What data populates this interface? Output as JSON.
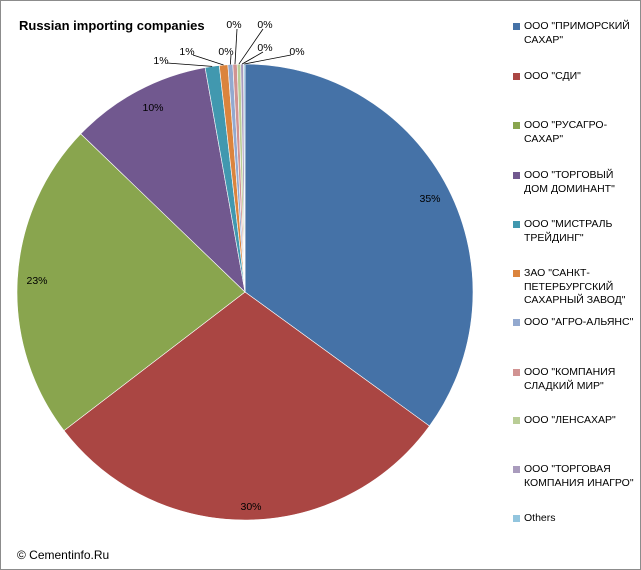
{
  "chart_data": {
    "type": "pie",
    "title": "Russian importing companies",
    "slices": [
      {
        "label": "ООО \"ПРИМОРСКИЙ САХАР\"",
        "value": 35.0,
        "pct_label": "35%",
        "color": "#4572A7"
      },
      {
        "label": "ООО \"СДИ\"",
        "value": 29.6,
        "pct_label": "30%",
        "color": "#AA4643"
      },
      {
        "label": "ООО \"РУСАГРО-САХАР\"",
        "value": 22.6,
        "pct_label": "23%",
        "color": "#89A54E"
      },
      {
        "label": "ООО \"ТОРГОВЫЙ ДОМ ДОМИНАНТ\"",
        "value": 10.0,
        "pct_label": "10%",
        "color": "#71588F"
      },
      {
        "label": "ООО \"МИСТРАЛЬ ТРЕЙДИНГ\"",
        "value": 1.0,
        "pct_label": "1%",
        "color": "#4198AF"
      },
      {
        "label": "ЗАО \"САНКТ-ПЕТЕРБУРГСКИЙ САХАРНЫЙ ЗАВОД\"",
        "value": 0.6,
        "pct_label": "1%",
        "color": "#DB843D"
      },
      {
        "label": "ООО \"АГРО-АЛЬЯНС\"",
        "value": 0.35,
        "pct_label": "0%",
        "color": "#93A9CF"
      },
      {
        "label": "ООО \"КОМПАНИЯ СЛАДКИЙ МИР\"",
        "value": 0.3,
        "pct_label": "0%",
        "color": "#D19392"
      },
      {
        "label": "ООО \"ЛЕНСАХАР\"",
        "value": 0.25,
        "pct_label": "0%",
        "color": "#B9CD96"
      },
      {
        "label": "ООО \"ТОРГОВАЯ КОМПАНИЯ ИНАГРО\"",
        "value": 0.2,
        "pct_label": "0%",
        "color": "#A99BBD"
      },
      {
        "label": "Others",
        "value": 0.1,
        "pct_label": "0%",
        "color": "#92C5DE"
      }
    ],
    "legend_position": "right"
  },
  "credit": "© Cementinfo.Ru"
}
